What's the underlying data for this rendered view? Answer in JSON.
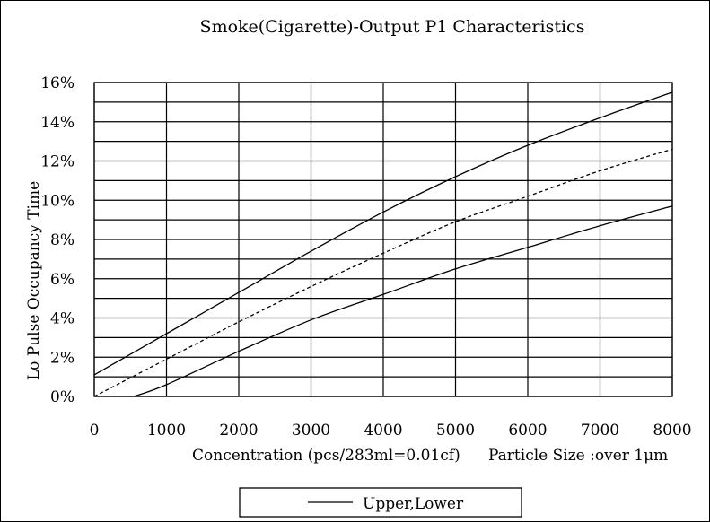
{
  "chart_data": {
    "type": "line",
    "title": "Smoke(Cigarette)-Output P1 Characteristics",
    "xlabel": "Concentration (pcs/283ml=0.01cf)",
    "xlabel_note": "Particle Size :over 1μm",
    "ylabel": "Lo Pulse Occupancy Time",
    "xlim": [
      0,
      8000
    ],
    "ylim": [
      0,
      16
    ],
    "x_ticks": [
      "0",
      "1000",
      "2000",
      "3000",
      "4000",
      "5000",
      "6000",
      "7000",
      "8000"
    ],
    "y_ticks": [
      "0%",
      "2%",
      "4%",
      "6%",
      "8%",
      "10%",
      "12%",
      "14%",
      "16%"
    ],
    "grid": true,
    "legend": {
      "position": "bottom",
      "label": "Upper,Lower"
    },
    "series": [
      {
        "style": "solid",
        "x": [
          0,
          1000,
          2000,
          3000,
          4000,
          5000,
          6000,
          7000,
          8000
        ],
        "y": [
          1.1,
          3.2,
          5.3,
          7.4,
          9.4,
          11.2,
          12.8,
          14.2,
          15.5
        ]
      },
      {
        "style": "dashed",
        "x": [
          0,
          1000,
          2000,
          3000,
          4000,
          5000,
          6000,
          7000,
          8000
        ],
        "y": [
          0.0,
          1.9,
          3.8,
          5.6,
          7.3,
          8.9,
          10.2,
          11.5,
          12.6
        ]
      },
      {
        "style": "solid",
        "x": [
          550,
          1000,
          2000,
          3000,
          4000,
          5000,
          6000,
          7000,
          8000
        ],
        "y": [
          0.0,
          0.6,
          2.3,
          3.9,
          5.2,
          6.5,
          7.6,
          8.7,
          9.7
        ]
      }
    ]
  }
}
